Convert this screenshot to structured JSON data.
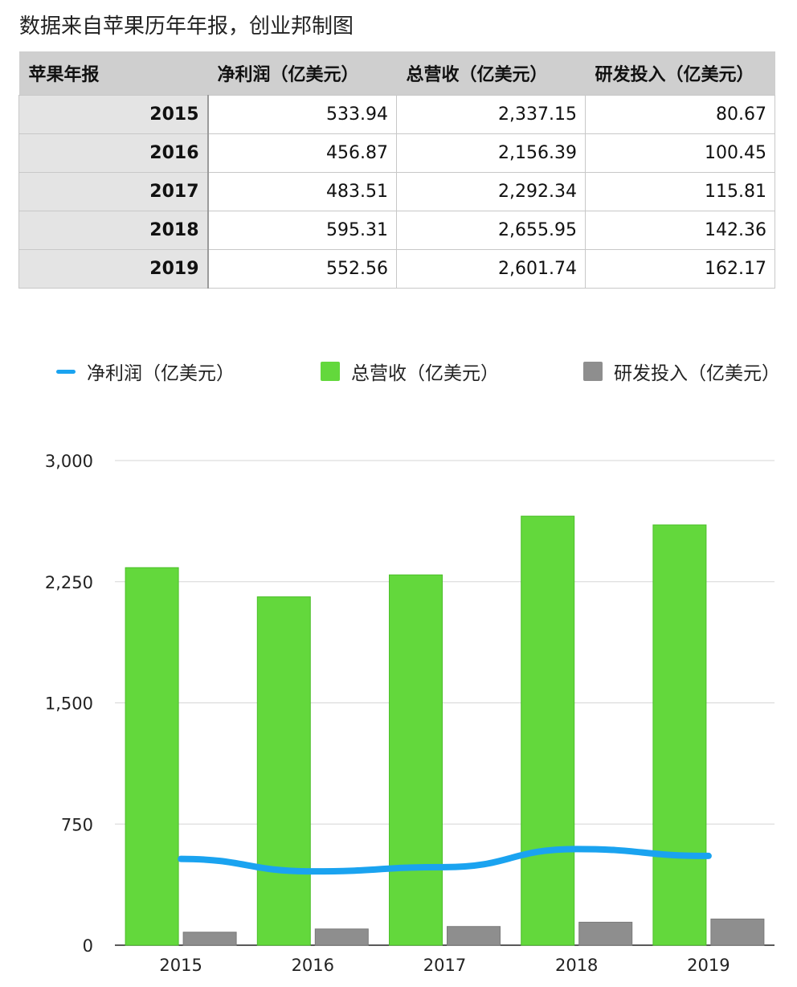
{
  "title": "数据来自苹果历年年报，创业邦制图",
  "table": {
    "headers": [
      "苹果年报",
      "净利润（亿美元）",
      "总营收（亿美元）",
      "研发投入（亿美元）"
    ],
    "rows": [
      [
        "2015",
        "533.94",
        "2,337.15",
        "80.67"
      ],
      [
        "2016",
        "456.87",
        "2,156.39",
        "100.45"
      ],
      [
        "2017",
        "483.51",
        "2,292.34",
        "115.81"
      ],
      [
        "2018",
        "595.31",
        "2,655.95",
        "142.36"
      ],
      [
        "2019",
        "552.56",
        "2,601.74",
        "162.17"
      ]
    ]
  },
  "chart_data": {
    "type": "bar",
    "categories": [
      "2015",
      "2016",
      "2017",
      "2018",
      "2019"
    ],
    "series": [
      {
        "name": "净利润（亿美元）",
        "kind": "line",
        "color": "#1aa3f0",
        "values": [
          533.94,
          456.87,
          483.51,
          595.31,
          552.56
        ]
      },
      {
        "name": "总营收（亿美元）",
        "kind": "bar",
        "color": "#63d83c",
        "values": [
          2337.15,
          2156.39,
          2292.34,
          2655.95,
          2601.74
        ]
      },
      {
        "name": "研发投入（亿美元）",
        "kind": "bar",
        "color": "#8e8e8e",
        "values": [
          80.67,
          100.45,
          115.81,
          142.36,
          162.17
        ]
      }
    ],
    "ylim": [
      0,
      3000
    ],
    "yticks": [
      0,
      750,
      1500,
      2250,
      3000
    ],
    "ytick_labels": [
      "0",
      "750",
      "1,500",
      "2,250",
      "3,000"
    ],
    "grid": true,
    "legend_position": "top"
  }
}
